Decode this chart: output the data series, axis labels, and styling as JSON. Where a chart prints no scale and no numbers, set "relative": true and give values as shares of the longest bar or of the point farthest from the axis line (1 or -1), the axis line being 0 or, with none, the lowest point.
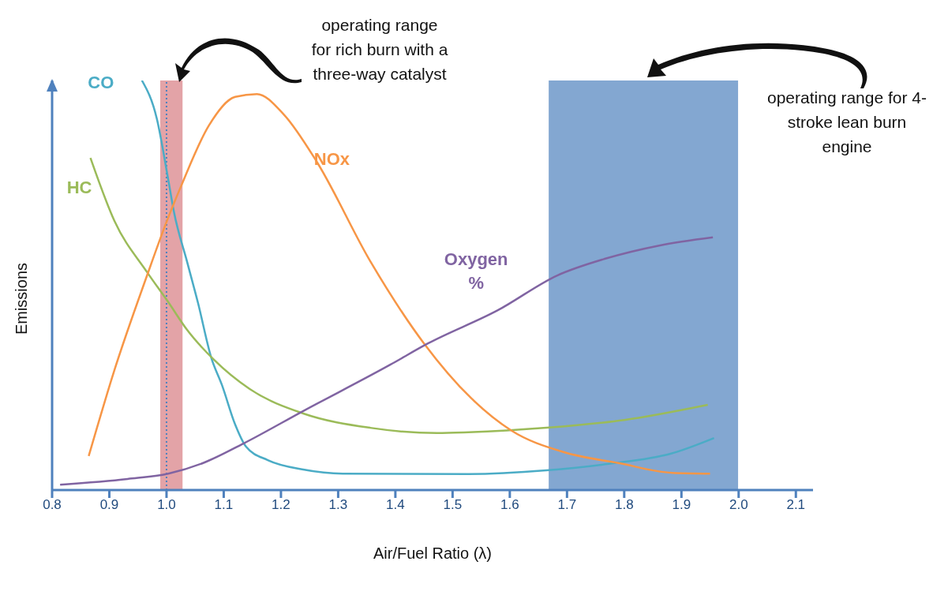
{
  "chart_data": {
    "type": "line",
    "xlabel": "Air/Fuel Ratio (λ)",
    "ylabel": "Emissions",
    "relative": true,
    "xlim": [
      0.8,
      2.13
    ],
    "xticks": [
      0.8,
      0.9,
      {
        "value": 1.0,
        "label": "1.0"
      },
      1.1,
      1.2,
      1.3,
      1.4,
      1.5,
      1.6,
      1.7,
      1.8,
      1.9,
      {
        "value": 2.0,
        "label": "2.0"
      },
      2.1
    ],
    "series": [
      {
        "name": "CO",
        "color": "#4bacc6",
        "x": [
          0.957,
          0.983,
          1.003,
          1.013,
          1.036,
          1.055,
          1.078,
          1.097,
          1.12,
          1.139,
          1.177,
          1.239,
          1.308,
          1.528,
          1.664,
          1.773,
          1.882,
          1.957
        ],
        "values": [
          1.0,
          0.907,
          0.758,
          0.679,
          0.557,
          0.457,
          0.324,
          0.256,
          0.16,
          0.106,
          0.073,
          0.05,
          0.04,
          0.039,
          0.048,
          0.064,
          0.089,
          0.127
        ]
      },
      {
        "name": "HC",
        "color": "#9bbb59",
        "x": [
          0.867,
          0.909,
          0.966,
          1.003,
          1.036,
          1.083,
          1.145,
          1.239,
          1.356,
          1.473,
          1.528,
          1.664,
          1.8,
          1.946
        ],
        "values": [
          0.811,
          0.657,
          0.532,
          0.459,
          0.391,
          0.318,
          0.247,
          0.187,
          0.152,
          0.139,
          0.141,
          0.152,
          0.171,
          0.208
        ]
      },
      {
        "name": "NOx",
        "color": "#f79646",
        "x": [
          0.864,
          0.909,
          0.966,
          0.999,
          1.026,
          1.074,
          1.12,
          1.158,
          1.205,
          1.262,
          1.356,
          1.45,
          1.532,
          1.602,
          1.696,
          1.79,
          1.884,
          1.95
        ],
        "values": [
          0.083,
          0.293,
          0.524,
          0.651,
          0.744,
          0.89,
          0.96,
          0.967,
          0.917,
          0.803,
          0.559,
          0.358,
          0.225,
          0.146,
          0.092,
          0.066,
          0.042,
          0.04
        ]
      },
      {
        "name": "Oxygen %",
        "color": "#8064a2",
        "x": [
          0.814,
          0.932,
          1.003,
          1.064,
          1.135,
          1.239,
          1.391,
          1.457,
          1.579,
          1.683,
          1.767,
          1.861,
          1.955
        ],
        "values": [
          0.013,
          0.027,
          0.04,
          0.066,
          0.114,
          0.193,
          0.306,
          0.358,
          0.439,
          0.524,
          0.565,
          0.597,
          0.617
        ]
      }
    ],
    "ref_lines": [
      {
        "axis": "x",
        "value": 1.0,
        "color": "#4f81bd",
        "line_style": "dotted"
      }
    ],
    "bands": [
      {
        "axis": "x",
        "from": 0.989,
        "to": 1.028,
        "color": "#d9848a"
      },
      {
        "axis": "x",
        "from": 1.668,
        "to": 1.999,
        "color": "#4f81bd"
      }
    ],
    "annotations": [
      "operating range for rich burn with a three-way catalyst",
      "operating range for 4-stroke lean burn engine"
    ],
    "legend": false,
    "marker": "none",
    "line_style": "solid"
  }
}
